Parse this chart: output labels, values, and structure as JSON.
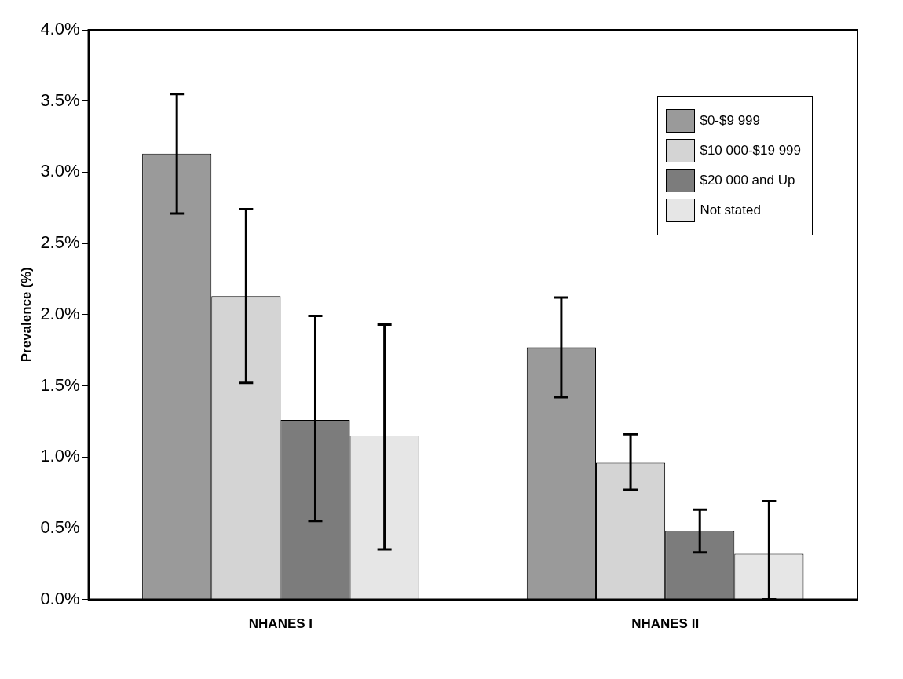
{
  "chart_data": {
    "type": "bar",
    "ylabel": "Prevalence (%)",
    "categories": [
      "NHANES I",
      "NHANES II"
    ],
    "series": [
      {
        "name": "$0-$9 999",
        "color": "#9a9a9a",
        "values": [
          3.13,
          1.77
        ],
        "errors": [
          [
            2.71,
            3.55
          ],
          [
            1.42,
            2.12
          ]
        ]
      },
      {
        "name": "$10 000-$19 999",
        "color": "#d4d4d4",
        "values": [
          2.13,
          0.96
        ],
        "errors": [
          [
            1.52,
            2.74
          ],
          [
            0.77,
            1.16
          ]
        ]
      },
      {
        "name": "$20 000 and Up",
        "color": "#7c7c7c",
        "values": [
          1.26,
          0.48
        ],
        "errors": [
          [
            0.55,
            1.99
          ],
          [
            0.33,
            0.63
          ]
        ]
      },
      {
        "name": "Not stated",
        "color": "#e6e6e6",
        "values": [
          1.15,
          0.32
        ],
        "errors": [
          [
            0.35,
            1.93
          ],
          [
            0.0,
            0.69
          ]
        ]
      }
    ],
    "ylim": [
      0,
      4
    ],
    "yticks": [
      {
        "value": 0,
        "label": "0.0%"
      },
      {
        "value": 0.5,
        "label": "0.5%"
      },
      {
        "value": 1,
        "label": "1.0%"
      },
      {
        "value": 1.5,
        "label": "1.5%"
      },
      {
        "value": 2,
        "label": "2.0%"
      },
      {
        "value": 2.5,
        "label": "2.5%"
      },
      {
        "value": 3,
        "label": "3.0%"
      },
      {
        "value": 3.5,
        "label": "3.5%"
      },
      {
        "value": 4,
        "label": "4.0%"
      }
    ],
    "grid": false,
    "legend": "top right"
  }
}
